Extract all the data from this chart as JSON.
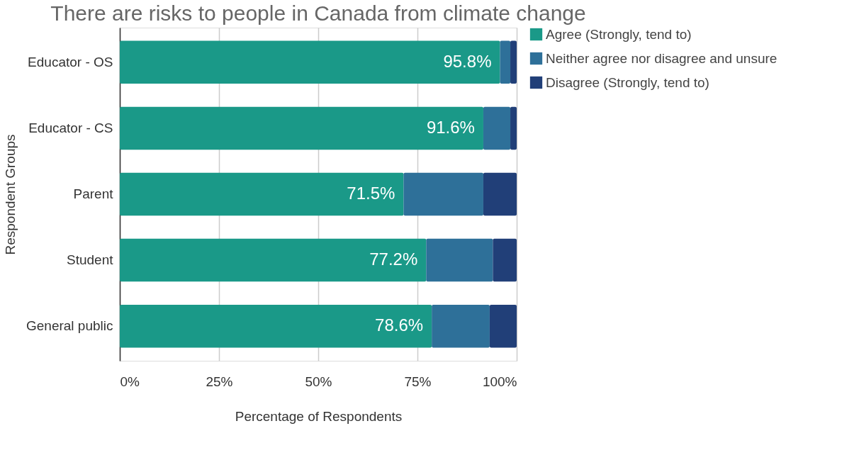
{
  "chart_data": {
    "type": "bar",
    "orientation": "horizontal",
    "stacked": true,
    "title": "There are risks to people in Canada from climate change",
    "xlabel": "Percentage of Respondents",
    "ylabel": "Respondent Groups",
    "categories": [
      "Educator - OS",
      "Educator - CS",
      "Parent",
      "Student",
      "General public"
    ],
    "series": [
      {
        "name": "Agree (Strongly, tend to)",
        "color": "#1a9988",
        "values": [
          95.8,
          91.6,
          71.5,
          77.2,
          78.6
        ],
        "value_labels": [
          "95.8%",
          "91.6%",
          "71.5%",
          "77.2%",
          "78.6%"
        ]
      },
      {
        "name": "Neither agree nor disagree and unsure",
        "color": "#2e7099",
        "values": [
          2.6,
          6.8,
          20.1,
          16.8,
          14.6
        ]
      },
      {
        "name": "Disagree (Strongly, tend to)",
        "color": "#213f78",
        "values": [
          1.6,
          1.6,
          8.4,
          6.0,
          6.8
        ]
      }
    ],
    "xlim": [
      0,
      100
    ],
    "xticks": [
      {
        "value": 0,
        "label": "0%"
      },
      {
        "value": 25,
        "label": "25%"
      },
      {
        "value": 50,
        "label": "50%"
      },
      {
        "value": 75,
        "label": "75%"
      },
      {
        "value": 100,
        "label": "100%"
      }
    ],
    "grid": "x",
    "legend": "right"
  }
}
